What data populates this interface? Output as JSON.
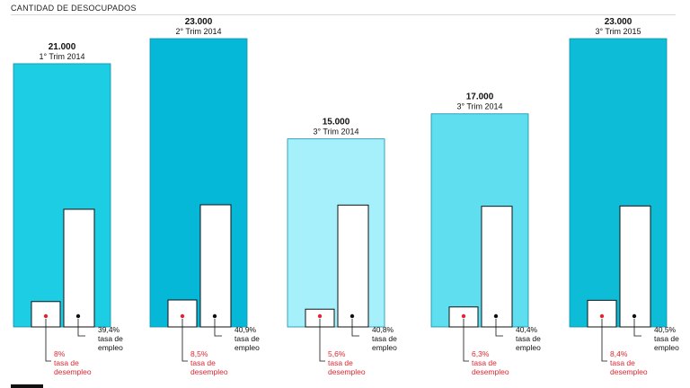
{
  "chart_data": {
    "type": "bar",
    "title": "CANTIDAD DE DESOCUPADOS",
    "categories": [
      "1° Trim 2014",
      "2° Trim 2014",
      "3° Trim 2014",
      "3° Trim 2014",
      "3° Trim 2015"
    ],
    "series": [
      {
        "values": [
          21000,
          23000,
          15000,
          17000,
          23000
        ]
      }
    ],
    "value_labels": [
      "21.000",
      "23.000",
      "15.000",
      "17.000",
      "23.000"
    ],
    "bar_colors": [
      "#1ccde3",
      "#06b8d8",
      "#a5f0fb",
      "#5fdef0",
      "#0dbdd8"
    ],
    "employment_rate": {
      "values": [
        39.4,
        40.9,
        40.8,
        40.4,
        40.5
      ],
      "labels": [
        "39,4%",
        "40,9%",
        "40,8%",
        "40,4%",
        "40,5%"
      ],
      "caption": [
        "tasa de",
        "empleo"
      ],
      "color": "#111111"
    },
    "unemployment_rate": {
      "values": [
        8,
        8.5,
        5.6,
        6.3,
        8.4
      ],
      "labels": [
        "8%",
        "8,5%",
        "5,6%",
        "6,3%",
        "8,4%"
      ],
      "caption": [
        "tasa de",
        "desempleo"
      ],
      "color": "#e0262e"
    }
  }
}
